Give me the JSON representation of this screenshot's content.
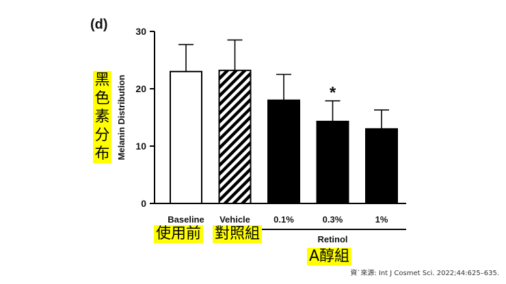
{
  "panel_label": "(d)",
  "chart_data": {
    "type": "bar",
    "ylabel": "Melanin Distribution",
    "ylim": [
      0,
      30
    ],
    "yticks": [
      0,
      10,
      20,
      30
    ],
    "categories": [
      "Baseline",
      "Vehicle",
      "0.1%",
      "0.3%",
      "1%"
    ],
    "values": [
      23,
      23.2,
      18,
      14.3,
      13
    ],
    "errors": [
      4.7,
      5.3,
      4.5,
      3.6,
      3.3
    ],
    "fills": [
      "white",
      "hatched",
      "black",
      "black",
      "black"
    ],
    "significance": [
      {
        "category": "0.3%",
        "mark": "*"
      }
    ],
    "group_bracket": {
      "label": "Retinol",
      "categories": [
        "0.1%",
        "0.3%",
        "1%"
      ]
    },
    "grid": false
  },
  "annotations": {
    "ylabel_zh": [
      "黑",
      "色",
      "素",
      "分",
      "布"
    ],
    "baseline_zh": "使用前",
    "vehicle_zh": "對照組",
    "retinol_zh": "A醇組"
  },
  "source": "資`來源: Int J Cosmet Sci. 2022;44:625–635.",
  "colors": {
    "highlight": "#ffff00",
    "bar": "#000000",
    "axis": "#000000"
  }
}
